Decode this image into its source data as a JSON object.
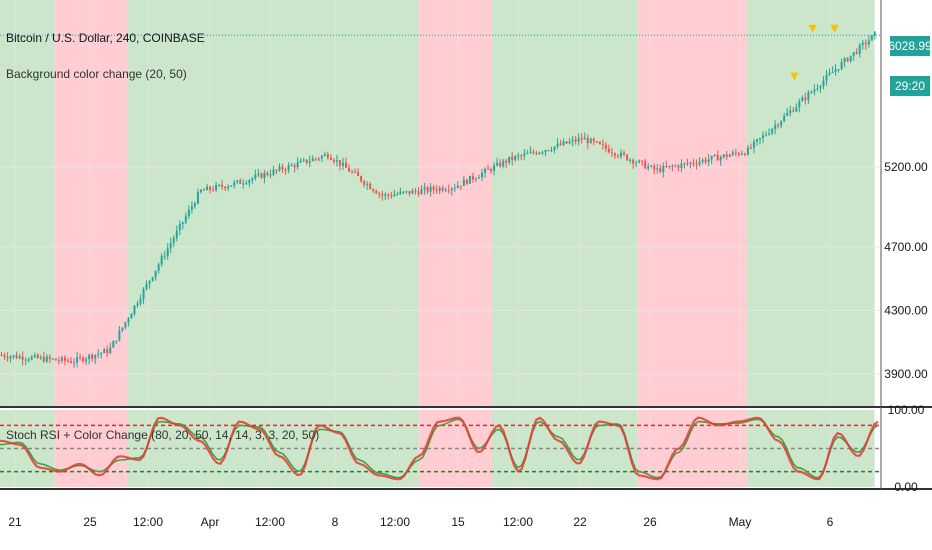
{
  "header": {
    "title": "Bitcoin / U.S. Dollar, 240, COINBASE",
    "indicator_label": "Background color change (20, 50)",
    "stoch_label": "Stoch RSI + Color Change (80, 20, 50, 14, 14, 3, 3, 20, 50)"
  },
  "price_axis": {
    "last_price": "6028.99",
    "countdown": "29:20",
    "ticks": [
      "5200.00",
      "4700.00",
      "4300.00",
      "3900.00"
    ]
  },
  "osc_axis": {
    "ticks": [
      "100.00",
      "0.00"
    ]
  },
  "time_axis": {
    "labels": [
      "21",
      "25",
      "12:00",
      "Apr",
      "12:00",
      "8",
      "12:00",
      "15",
      "12:00",
      "22",
      "26",
      "May",
      "6"
    ]
  },
  "colors": {
    "bull_bg": "#cbe6cb",
    "bear_bg": "#ffcdd2",
    "up_candle": "#26a69a",
    "down_candle": "#ef5350",
    "k_line": "#e53935",
    "d_line": "#43a047",
    "axis_text": "#131722",
    "grid": "#e6e6e6"
  },
  "chart_data": [
    {
      "type": "candlestick",
      "title": "Bitcoin / U.S. Dollar, 240, COINBASE",
      "ylim": [
        3700,
        6250
      ],
      "x": [
        "Mar 21",
        "Mar 25",
        "Mar 27",
        "Apr 1",
        "Apr 3",
        "Apr 8",
        "Apr 11",
        "Apr 15",
        "Apr 18",
        "Apr 22",
        "Apr 26",
        "May 1",
        "May 6",
        "May 8"
      ],
      "close": [
        4020,
        3980,
        4050,
        5050,
        5100,
        5280,
        5020,
        5080,
        5250,
        5380,
        5180,
        5300,
        5830,
        6029
      ],
      "last_price": 6028.99,
      "background_regimes": [
        {
          "from": "Mar 21",
          "to": "Mar 24",
          "state": "bull"
        },
        {
          "from": "Mar 24",
          "to": "Mar 28",
          "state": "bear"
        },
        {
          "from": "Mar 28",
          "to": "Apr 13",
          "state": "bull"
        },
        {
          "from": "Apr 13",
          "to": "Apr 17",
          "state": "bear"
        },
        {
          "from": "Apr 17",
          "to": "Apr 25",
          "state": "bull"
        },
        {
          "from": "Apr 25",
          "to": "May 1",
          "state": "bear"
        },
        {
          "from": "May 1",
          "to": "May 8",
          "state": "bull"
        }
      ]
    },
    {
      "type": "line",
      "title": "Stoch RSI + Color Change (80, 20, 50, 14, 14, 3, 3, 20, 50)",
      "ylim": [
        0,
        100
      ],
      "levels": [
        80,
        50,
        20
      ],
      "series": [
        {
          "values": [
            60,
            55,
            25,
            20,
            30,
            15,
            40,
            35,
            90,
            80,
            60,
            30,
            85,
            75,
            40,
            15,
            80,
            70,
            30,
            15,
            10,
            40,
            85,
            90,
            45,
            80,
            20,
            90,
            60,
            30,
            85,
            80,
            15,
            10,
            50,
            90,
            80,
            85,
            90,
            60,
            20,
            10,
            70,
            40,
            85
          ]
        },
        {
          "values": [
            55,
            58,
            30,
            22,
            28,
            20,
            35,
            38,
            85,
            82,
            65,
            35,
            80,
            78,
            45,
            20,
            75,
            72,
            35,
            18,
            12,
            35,
            80,
            88,
            50,
            75,
            25,
            85,
            65,
            35,
            80,
            82,
            20,
            12,
            45,
            85,
            82,
            83,
            88,
            65,
            25,
            12,
            65,
            45,
            80
          ]
        }
      ]
    }
  ]
}
